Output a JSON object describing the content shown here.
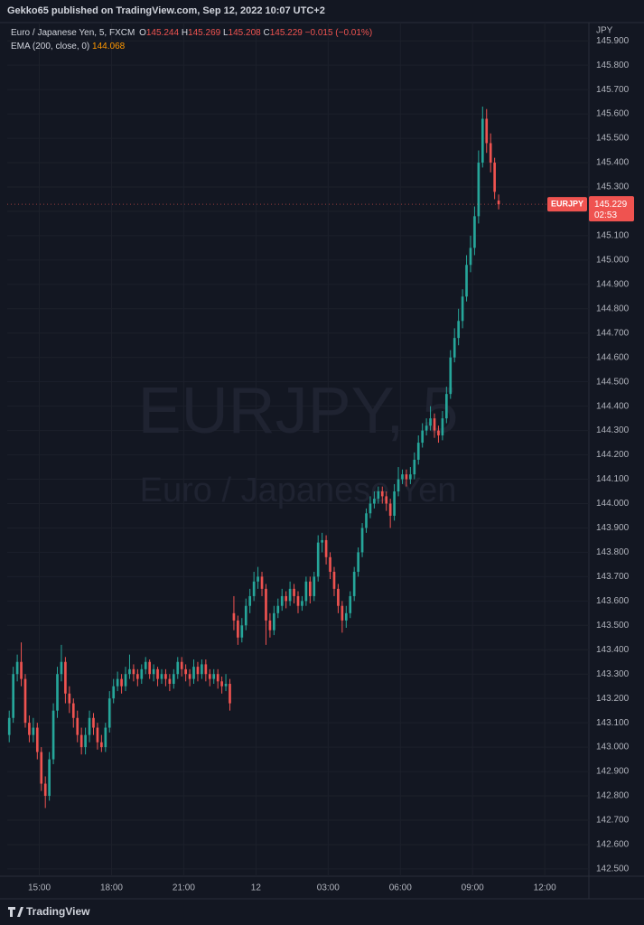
{
  "header": {
    "publisher": "Gekko65 published on TradingView.com, Sep 12, 2022 10:07 UTC+2",
    "footer": "TradingView"
  },
  "chart_data": {
    "type": "candlestick",
    "symbol_line": "Euro / Japanese Yen, 5, FXCM",
    "legend": {
      "o_label": "O",
      "o_value": "145.244",
      "h_label": "H",
      "h_value": "145.269",
      "l_label": "L",
      "l_value": "145.208",
      "c_label": "C",
      "c_value": "145.229",
      "change": "−0.015 (−0.01%)",
      "ema_label": "EMA (200, close, 0)",
      "ema_value": "144.068"
    },
    "watermark": "EURJPY, 5",
    "watermark_sub": "Euro / Japanese Yen",
    "axis_unit": "JPY",
    "last_price": {
      "symbol": "EURJPY",
      "value": 145.229,
      "countdown": "02:53"
    },
    "up_color": "#26a69a",
    "down_color": "#ef5350",
    "grid": true,
    "xlim": [
      -0.5,
      144.5
    ],
    "xticks": [
      {
        "value": 7.5,
        "label": "15:00"
      },
      {
        "value": 25.5,
        "label": "18:00"
      },
      {
        "value": 43.5,
        "label": "21:00"
      },
      {
        "value": 61.5,
        "label": "12"
      },
      {
        "value": 79.5,
        "label": "03:00"
      },
      {
        "value": 97.5,
        "label": "06:00"
      },
      {
        "value": 115.5,
        "label": "09:00"
      },
      {
        "value": 133.5,
        "label": "12:00"
      }
    ],
    "ylim": [
      142.47,
      145.975
    ],
    "yticks": [
      {
        "value": 142.5,
        "label": "142.500"
      },
      {
        "value": 142.6,
        "label": "142.600"
      },
      {
        "value": 142.7,
        "label": "142.700"
      },
      {
        "value": 142.8,
        "label": "142.800"
      },
      {
        "value": 142.9,
        "label": "142.900"
      },
      {
        "value": 143.0,
        "label": "143.000"
      },
      {
        "value": 143.1,
        "label": "143.100"
      },
      {
        "value": 143.2,
        "label": "143.200"
      },
      {
        "value": 143.3,
        "label": "143.300"
      },
      {
        "value": 143.4,
        "label": "143.400"
      },
      {
        "value": 143.5,
        "label": "143.500"
      },
      {
        "value": 143.6,
        "label": "143.600"
      },
      {
        "value": 143.7,
        "label": "143.700"
      },
      {
        "value": 143.8,
        "label": "143.800"
      },
      {
        "value": 143.9,
        "label": "143.900"
      },
      {
        "value": 144.0,
        "label": "144.000"
      },
      {
        "value": 144.1,
        "label": "144.100"
      },
      {
        "value": 144.2,
        "label": "144.200"
      },
      {
        "value": 144.3,
        "label": "144.300"
      },
      {
        "value": 144.4,
        "label": "144.400"
      },
      {
        "value": 144.5,
        "label": "144.500"
      },
      {
        "value": 144.6,
        "label": "144.600"
      },
      {
        "value": 144.7,
        "label": "144.700"
      },
      {
        "value": 144.8,
        "label": "144.800"
      },
      {
        "value": 144.9,
        "label": "144.900"
      },
      {
        "value": 145.0,
        "label": "145.000"
      },
      {
        "value": 145.1,
        "label": "145.100"
      },
      {
        "value": 145.2,
        "label": "145.200"
      },
      {
        "value": 145.3,
        "label": "145.300"
      },
      {
        "value": 145.4,
        "label": "145.400"
      },
      {
        "value": 145.5,
        "label": "145.500"
      },
      {
        "value": 145.6,
        "label": "145.600"
      },
      {
        "value": 145.7,
        "label": "145.700"
      },
      {
        "value": 145.8,
        "label": "145.800"
      },
      {
        "value": 145.9,
        "label": "145.900"
      }
    ],
    "open": [
      143.05,
      143.12,
      143.3,
      143.35,
      143.28,
      143.1,
      143.05,
      143.08,
      142.98,
      142.85,
      142.8,
      142.95,
      143.15,
      143.3,
      143.35,
      143.22,
      143.18,
      143.12,
      143.05,
      143.0,
      143.05,
      143.12,
      143.08,
      143.02,
      143.0,
      143.08,
      143.2,
      143.25,
      143.28,
      143.25,
      143.3,
      143.32,
      143.3,
      143.28,
      143.32,
      143.35,
      143.3,
      143.32,
      143.28,
      143.3,
      143.28,
      143.26,
      143.3,
      143.35,
      143.32,
      143.3,
      143.28,
      143.33,
      143.3,
      143.34,
      143.3,
      143.28,
      143.3,
      143.27,
      143.25,
      143.26,
      143.55,
      143.52,
      143.45,
      143.5,
      143.58,
      143.62,
      143.68,
      143.7,
      143.65,
      143.52,
      143.48,
      143.55,
      143.58,
      143.62,
      143.6,
      143.65,
      143.62,
      143.58,
      143.6,
      143.68,
      143.62,
      143.7,
      143.84,
      143.85,
      143.78,
      143.72,
      143.65,
      143.58,
      143.52,
      143.55,
      143.62,
      143.72,
      143.8,
      143.9,
      143.96,
      144.0,
      144.02,
      144.05,
      144.03,
      144.0,
      143.95,
      144.05,
      144.1,
      144.12,
      144.1,
      144.12,
      144.18,
      144.25,
      144.3,
      144.32,
      144.35,
      144.3,
      144.28,
      144.35,
      144.45,
      144.6,
      144.68,
      144.75,
      144.85,
      144.98,
      145.05,
      145.18,
      145.4,
      145.58,
      145.48,
      145.4,
      145.244
    ],
    "high": [
      143.15,
      143.33,
      143.38,
      143.43,
      143.3,
      143.13,
      143.12,
      143.1,
      143.0,
      142.88,
      142.98,
      143.18,
      143.33,
      143.42,
      143.37,
      143.25,
      143.2,
      143.15,
      143.08,
      143.08,
      143.15,
      143.14,
      143.1,
      143.05,
      143.1,
      143.23,
      143.28,
      143.31,
      143.3,
      143.33,
      143.38,
      143.34,
      143.32,
      143.34,
      143.37,
      143.36,
      143.34,
      143.33,
      143.32,
      143.32,
      143.3,
      143.32,
      143.37,
      143.37,
      143.34,
      143.32,
      143.36,
      143.35,
      143.36,
      143.36,
      143.32,
      143.32,
      143.32,
      143.29,
      143.3,
      143.28,
      143.62,
      143.54,
      143.53,
      143.61,
      143.65,
      143.72,
      143.74,
      143.72,
      143.67,
      143.55,
      143.58,
      143.61,
      143.65,
      143.64,
      143.68,
      143.67,
      143.64,
      143.62,
      143.7,
      143.7,
      143.72,
      143.87,
      143.88,
      143.87,
      143.8,
      143.74,
      143.67,
      143.6,
      143.58,
      143.64,
      143.74,
      143.82,
      143.92,
      143.98,
      144.03,
      144.05,
      144.07,
      144.07,
      144.05,
      144.02,
      144.08,
      144.15,
      144.14,
      144.14,
      144.15,
      144.21,
      144.28,
      144.33,
      144.35,
      144.4,
      144.37,
      144.32,
      144.38,
      144.48,
      144.63,
      144.72,
      144.8,
      144.88,
      145.02,
      145.1,
      145.22,
      145.45,
      145.63,
      145.62,
      145.52,
      145.42,
      145.269
    ],
    "low": [
      143.02,
      143.1,
      143.27,
      143.25,
      143.08,
      143.02,
      143.02,
      142.95,
      142.82,
      142.75,
      142.78,
      142.93,
      143.12,
      143.27,
      143.18,
      143.14,
      143.08,
      143.02,
      142.97,
      142.97,
      143.02,
      143.05,
      142.99,
      142.98,
      142.98,
      143.06,
      143.18,
      143.23,
      143.22,
      143.23,
      143.28,
      143.27,
      143.25,
      143.26,
      143.3,
      143.28,
      143.27,
      143.25,
      143.26,
      143.25,
      143.23,
      143.24,
      143.28,
      143.29,
      143.27,
      143.25,
      143.26,
      143.27,
      143.28,
      143.27,
      143.25,
      143.26,
      143.24,
      143.22,
      143.23,
      143.15,
      143.48,
      143.42,
      143.43,
      143.48,
      143.55,
      143.6,
      143.65,
      143.62,
      143.42,
      143.45,
      143.46,
      143.53,
      143.56,
      143.57,
      143.58,
      143.59,
      143.55,
      143.56,
      143.58,
      143.59,
      143.6,
      143.68,
      143.8,
      143.75,
      143.69,
      143.62,
      143.55,
      143.47,
      143.49,
      143.53,
      143.6,
      143.7,
      143.78,
      143.88,
      143.94,
      143.98,
      144.0,
      144.0,
      143.97,
      143.9,
      143.93,
      144.03,
      144.08,
      144.07,
      144.08,
      144.1,
      144.16,
      144.23,
      144.28,
      144.3,
      144.27,
      144.25,
      144.26,
      144.33,
      144.43,
      144.58,
      144.65,
      144.72,
      144.83,
      144.95,
      145.02,
      145.15,
      145.38,
      145.44,
      145.36,
      145.25,
      145.208
    ],
    "close": [
      143.12,
      143.3,
      143.35,
      143.28,
      143.1,
      143.05,
      143.08,
      142.98,
      142.85,
      142.8,
      142.95,
      143.15,
      143.3,
      143.35,
      143.22,
      143.18,
      143.12,
      143.05,
      143.0,
      143.05,
      143.12,
      143.08,
      143.02,
      143.0,
      143.08,
      143.2,
      143.25,
      143.28,
      143.25,
      143.3,
      143.32,
      143.3,
      143.28,
      143.32,
      143.35,
      143.3,
      143.32,
      143.28,
      143.3,
      143.28,
      143.26,
      143.3,
      143.35,
      143.32,
      143.3,
      143.28,
      143.33,
      143.3,
      143.34,
      143.3,
      143.28,
      143.3,
      143.27,
      143.25,
      143.26,
      143.18,
      143.52,
      143.45,
      143.5,
      143.58,
      143.62,
      143.68,
      143.7,
      143.65,
      143.52,
      143.48,
      143.55,
      143.58,
      143.62,
      143.6,
      143.65,
      143.62,
      143.58,
      143.6,
      143.68,
      143.62,
      143.7,
      143.84,
      143.85,
      143.78,
      143.72,
      143.65,
      143.58,
      143.52,
      143.55,
      143.62,
      143.72,
      143.8,
      143.9,
      143.96,
      144.0,
      144.02,
      144.05,
      144.03,
      144.0,
      143.95,
      144.05,
      144.1,
      144.12,
      144.1,
      144.12,
      144.18,
      144.25,
      144.3,
      144.32,
      144.35,
      144.3,
      144.28,
      144.35,
      144.45,
      144.6,
      144.68,
      144.75,
      144.85,
      144.98,
      145.05,
      145.18,
      145.4,
      145.58,
      145.48,
      145.4,
      145.28,
      145.229
    ]
  }
}
